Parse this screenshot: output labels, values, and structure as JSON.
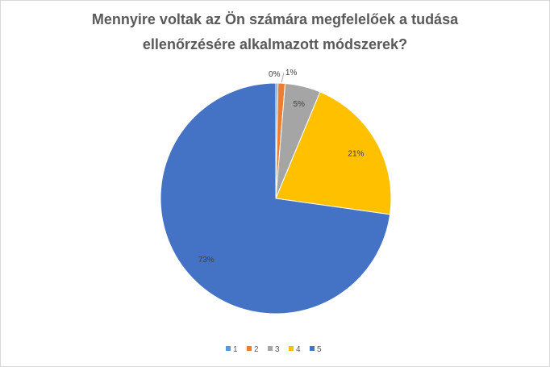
{
  "chart_data": {
    "type": "pie",
    "title_lines": [
      "Mennyire voltak az Ön számára  megfelelőek a tudása",
      "ellenőrzésére alkalmazott  módszerek?"
    ],
    "categories": [
      "1",
      "2",
      "3",
      "4",
      "5"
    ],
    "values": [
      0.3,
      1,
      5,
      21,
      73
    ],
    "data_labels": [
      "0%",
      "1%",
      "5%",
      "21%",
      "73%"
    ],
    "colors": [
      "#5b9bd5",
      "#ed7d31",
      "#a5a5a5",
      "#ffc000",
      "#4472c4"
    ],
    "legend_position": "bottom",
    "start_angle_deg": 0,
    "direction": "clockwise"
  }
}
